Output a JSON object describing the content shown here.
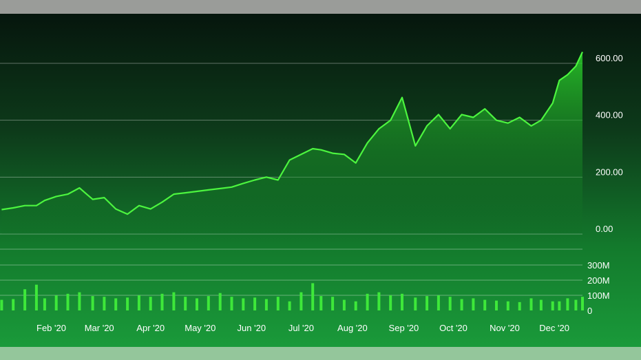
{
  "chart_data": {
    "type": "line",
    "title": "",
    "xlabel": "",
    "ylabel": "",
    "grid": true,
    "x_tick_labels": [
      "Feb '20",
      "Mar '20",
      "Apr '20",
      "May '20",
      "Jun '20",
      "Jul '20",
      "Aug '20",
      "Sep '20",
      "Oct '20",
      "Nov '20",
      "Dec '20"
    ],
    "price_axis": {
      "tick_labels": [
        "600.00",
        "400.00",
        "200.00",
        "0.00"
      ],
      "ticks": [
        600,
        400,
        200,
        0
      ],
      "ylim": [
        0,
        620
      ]
    },
    "volume_axis": {
      "tick_labels": [
        "300M",
        "200M",
        "100M",
        "0"
      ],
      "ticks": [
        300,
        200,
        100,
        0
      ],
      "ylim": [
        0,
        320
      ]
    },
    "price_series": {
      "name": "",
      "x": [
        "2020-01-02",
        "2020-01-09",
        "2020-01-16",
        "2020-01-23",
        "2020-01-28",
        "2020-02-04",
        "2020-02-11",
        "2020-02-18",
        "2020-02-26",
        "2020-03-04",
        "2020-03-11",
        "2020-03-18",
        "2020-03-25",
        "2020-04-01",
        "2020-04-08",
        "2020-04-15",
        "2020-04-22",
        "2020-04-29",
        "2020-05-06",
        "2020-05-13",
        "2020-05-20",
        "2020-05-27",
        "2020-06-03",
        "2020-06-10",
        "2020-06-17",
        "2020-06-24",
        "2020-07-01",
        "2020-07-08",
        "2020-07-13",
        "2020-07-20",
        "2020-07-27",
        "2020-08-03",
        "2020-08-10",
        "2020-08-17",
        "2020-08-24",
        "2020-08-31",
        "2020-09-08",
        "2020-09-15",
        "2020-09-22",
        "2020-09-29",
        "2020-10-06",
        "2020-10-13",
        "2020-10-20",
        "2020-10-27",
        "2020-11-03",
        "2020-11-10",
        "2020-11-17",
        "2020-11-23",
        "2020-11-30",
        "2020-12-04",
        "2020-12-09",
        "2020-12-14",
        "2020-12-18"
      ],
      "values": [
        86,
        92,
        100,
        100,
        118,
        132,
        140,
        162,
        122,
        128,
        88,
        70,
        100,
        88,
        112,
        140,
        145,
        150,
        155,
        160,
        165,
        178,
        190,
        200,
        190,
        260,
        280,
        300,
        296,
        284,
        280,
        250,
        320,
        370,
        400,
        480,
        310,
        380,
        420,
        370,
        420,
        410,
        440,
        400,
        390,
        410,
        380,
        400,
        460,
        540,
        560,
        590,
        640
      ]
    },
    "volume_series": {
      "name": "",
      "values": [
        70,
        75,
        140,
        170,
        80,
        100,
        110,
        120,
        95,
        90,
        80,
        85,
        100,
        90,
        110,
        120,
        90,
        80,
        95,
        115,
        90,
        80,
        85,
        75,
        90,
        60,
        120,
        180,
        95,
        90,
        70,
        60,
        110,
        120,
        100,
        110,
        85,
        95,
        100,
        90,
        75,
        80,
        70,
        65,
        60,
        55,
        80,
        70,
        60,
        60,
        80,
        70,
        90
      ]
    }
  }
}
